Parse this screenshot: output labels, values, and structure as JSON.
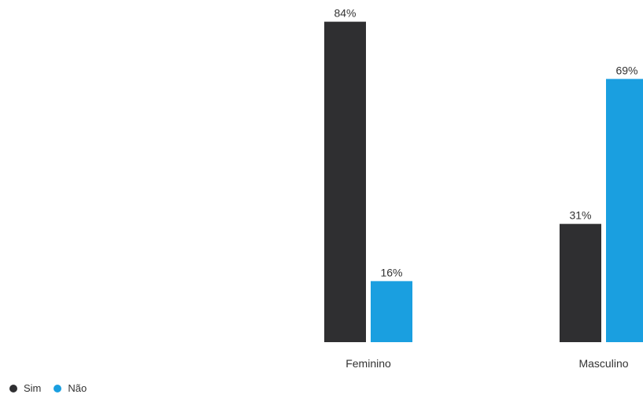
{
  "chart_data": {
    "type": "bar",
    "categories": [
      "Feminino",
      "Masculino"
    ],
    "series": [
      {
        "name": "Sim",
        "values": [
          84,
          31
        ],
        "color": "#2f2f31"
      },
      {
        "name": "Não",
        "values": [
          16,
          69
        ],
        "color": "#1a9fe0"
      }
    ],
    "value_suffix": "%",
    "ylim": [
      0,
      100
    ],
    "grid": false,
    "legend_position": "bottom-left",
    "title": "",
    "xlabel": "",
    "ylabel": ""
  }
}
